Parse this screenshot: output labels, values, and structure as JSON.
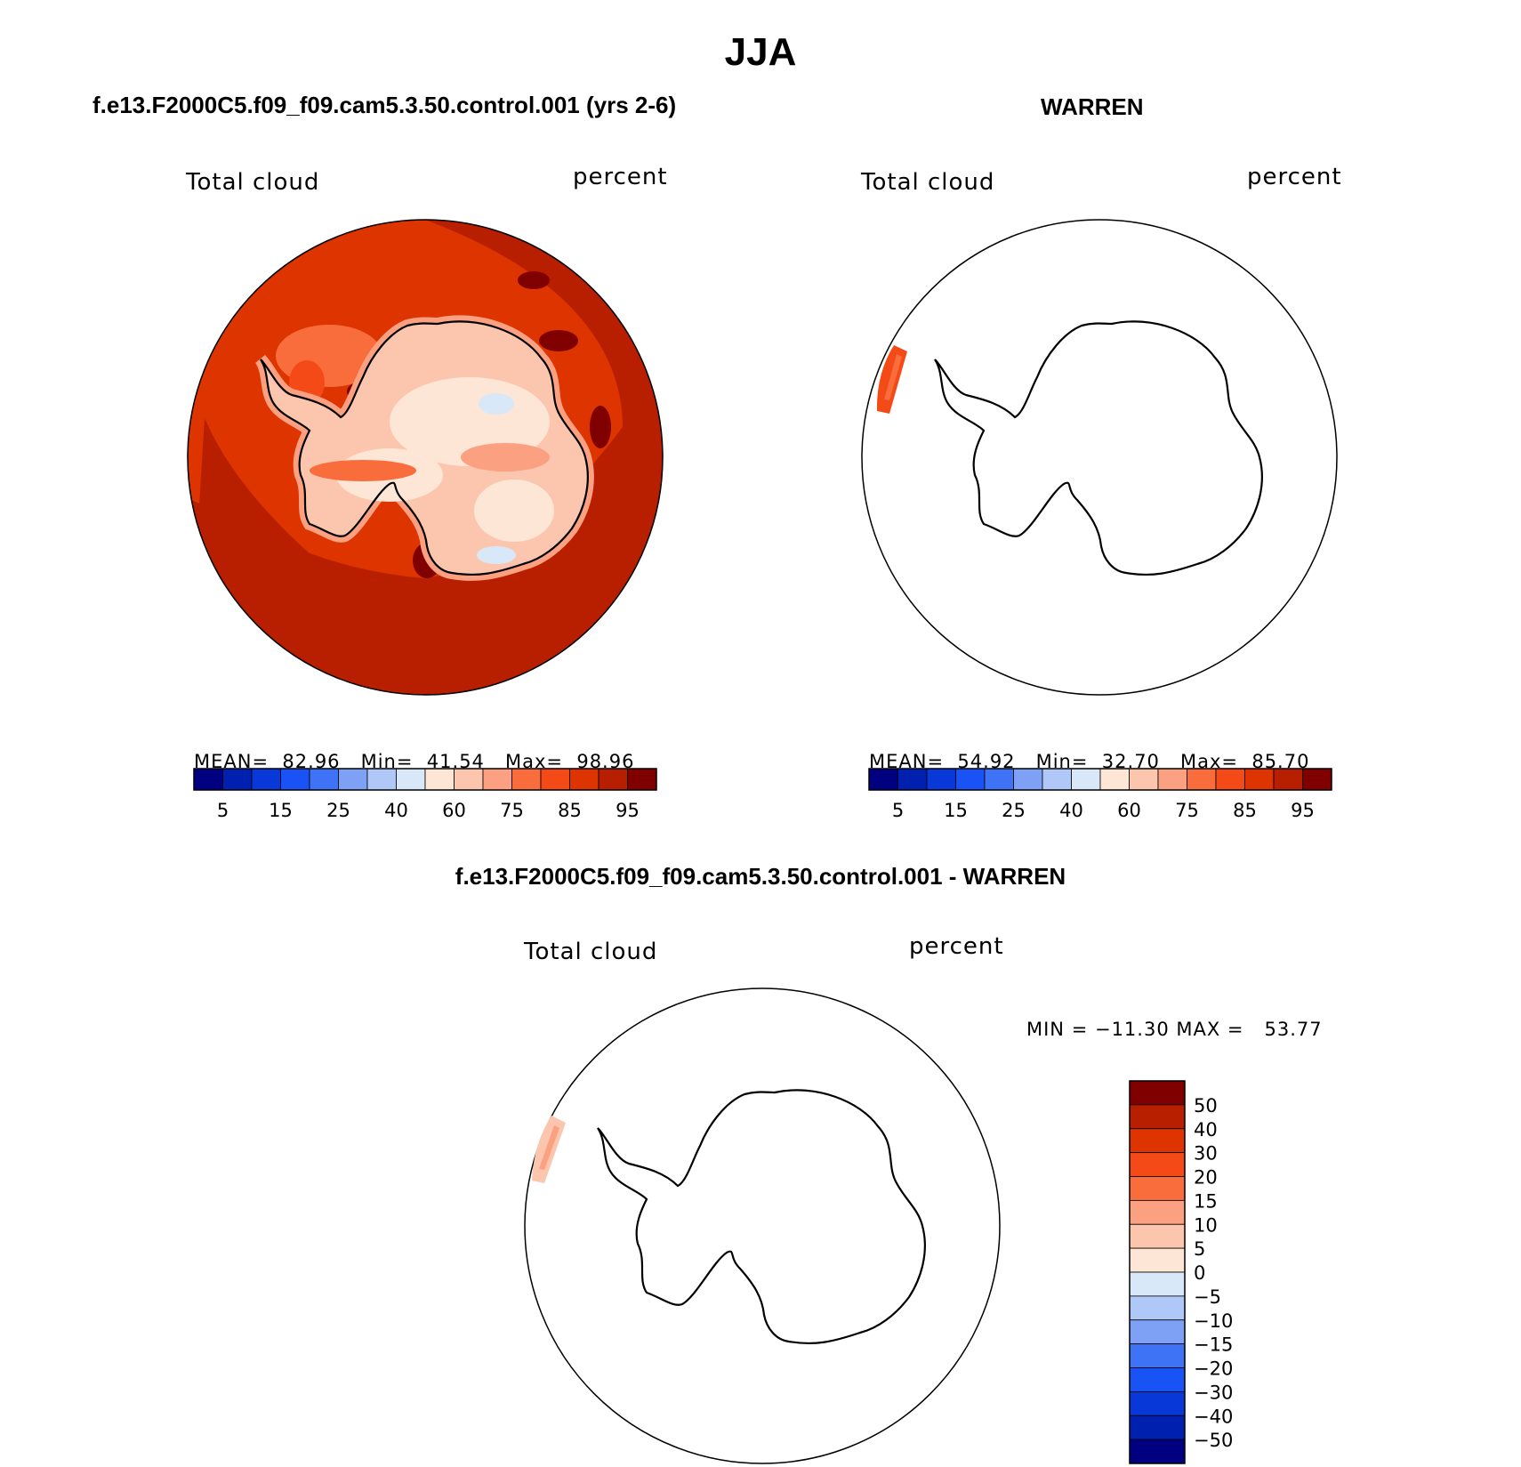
{
  "page": {
    "title": "JJA",
    "left_title": "f.e13.F2000C5.f09_f09.cam5.3.50.control.001 (yrs 2-6)",
    "right_title": "WARREN",
    "bottom_title": "f.e13.F2000C5.f09_f09.cam5.3.50.control.001 - WARREN"
  },
  "panels": {
    "model": {
      "variable": "Total cloud",
      "units": "percent",
      "mean_label": "MEAN=",
      "mean": "82.96",
      "min_label": "Min=",
      "min": "41.54",
      "max_label": "Max=",
      "max": "98.96"
    },
    "obs": {
      "variable": "Total cloud",
      "units": "percent",
      "mean_label": "MEAN=",
      "mean": "54.92",
      "min_label": "Min=",
      "min": "32.70",
      "max_label": "Max=",
      "max": "85.70"
    },
    "diff": {
      "variable": "Total cloud",
      "units": "percent",
      "minmax": "MIN = −11.30 MAX =   53.77"
    }
  },
  "colorbars": {
    "abs": {
      "colors": [
        "#000080",
        "#0020b0",
        "#0838d8",
        "#1a53f5",
        "#3f73f5",
        "#7ea0f5",
        "#b0c8f8",
        "#d8e8f8",
        "#fde6d6",
        "#fcc6ae",
        "#fba080",
        "#f96c3c",
        "#f44a18",
        "#dd3400",
        "#b81f00",
        "#800000"
      ],
      "labels": [
        "5",
        "15",
        "25",
        "40",
        "60",
        "75",
        "85",
        "95"
      ]
    },
    "diff": {
      "colors": [
        "#800000",
        "#b81f00",
        "#dd3400",
        "#f44a18",
        "#f96c3c",
        "#fba080",
        "#fcc6ae",
        "#fde6d6",
        "#d8e8f8",
        "#b0c8f8",
        "#7ea0f5",
        "#3f73f5",
        "#1a53f5",
        "#0838d8",
        "#0020b0",
        "#000080"
      ],
      "labels": [
        "50",
        "40",
        "30",
        "20",
        "15",
        "10",
        "5",
        "0",
        "−5",
        "−10",
        "−15",
        "−20",
        "−30",
        "−40",
        "−50"
      ]
    }
  }
}
